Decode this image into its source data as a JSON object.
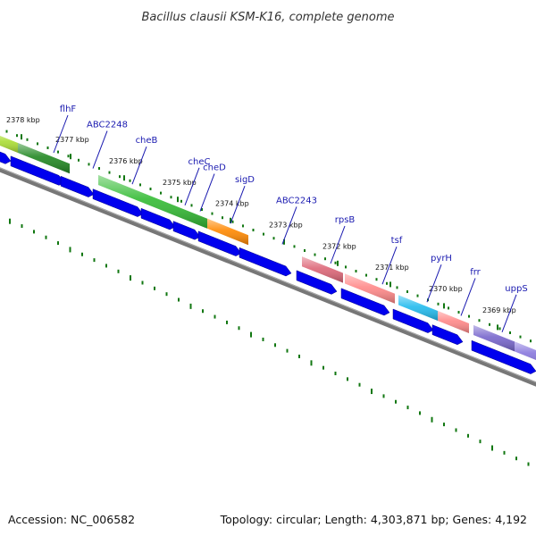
{
  "title": "Bacillus clausii KSM-K16, complete genome",
  "footer": {
    "accession": "Accession: NC_006582",
    "summary": "Topology: circular; Length: 4,303,871 bp; Genes: 4,192"
  },
  "colors": {
    "backbone": "#777777",
    "cds_forward": "#0000ee",
    "dots": "#117711",
    "label": "#1a1ab0"
  },
  "ticks": [
    {
      "label": "2378 kbp",
      "pos": 7
    },
    {
      "label": "2377 kbp",
      "pos": 62
    },
    {
      "label": "2376 kbp",
      "pos": 122
    },
    {
      "label": "2375 kbp",
      "pos": 182
    },
    {
      "label": "2374 kbp",
      "pos": 241
    },
    {
      "label": "2373 kbp",
      "pos": 301
    },
    {
      "label": "2372 kbp",
      "pos": 361
    },
    {
      "label": "2371 kbp",
      "pos": 420
    },
    {
      "label": "2370 kbp",
      "pos": 480
    },
    {
      "label": "2369 kbp",
      "pos": 540
    }
  ],
  "genes": [
    {
      "label": "flhF",
      "pos": 60
    },
    {
      "label": "ABC2248",
      "pos": 104
    },
    {
      "label": "cheB",
      "pos": 148
    },
    {
      "label": "cheC",
      "pos": 207
    },
    {
      "label": "cheD",
      "pos": 224
    },
    {
      "label": "sigD",
      "pos": 258
    },
    {
      "label": "ABC2243",
      "pos": 316
    },
    {
      "label": "rpsB",
      "pos": 370
    },
    {
      "label": "tsf",
      "pos": 428
    },
    {
      "label": "pyrH",
      "pos": 478
    },
    {
      "label": "frr",
      "pos": 516
    },
    {
      "label": "uppS",
      "pos": 562
    }
  ],
  "top_features": [
    {
      "start": -10,
      "end": 20,
      "color": "#aadd33"
    },
    {
      "start": 20,
      "end": 78,
      "color": "#228822"
    },
    {
      "start": 110,
      "end": 232,
      "color": "#33bb33"
    },
    {
      "start": 232,
      "end": 278,
      "color": "#ff8800"
    },
    {
      "start": 338,
      "end": 384,
      "color": "#dd6677"
    },
    {
      "start": 386,
      "end": 442,
      "color": "#ff8888"
    },
    {
      "start": 446,
      "end": 490,
      "color": "#22bbee"
    },
    {
      "start": 490,
      "end": 525,
      "color": "#ff8888"
    },
    {
      "start": 530,
      "end": 576,
      "color": "#7766cc"
    },
    {
      "start": 576,
      "end": 620,
      "color": "#8877dd"
    }
  ],
  "cds_arrows": [
    {
      "start": -10,
      "end": 12
    },
    {
      "start": 12,
      "end": 72
    },
    {
      "start": 68,
      "end": 105
    },
    {
      "start": 104,
      "end": 160
    },
    {
      "start": 158,
      "end": 196
    },
    {
      "start": 194,
      "end": 224
    },
    {
      "start": 222,
      "end": 270
    },
    {
      "start": 268,
      "end": 326
    },
    {
      "start": 332,
      "end": 377
    },
    {
      "start": 382,
      "end": 436
    },
    {
      "start": 440,
      "end": 485
    },
    {
      "start": 484,
      "end": 518
    },
    {
      "start": 528,
      "end": 600
    }
  ]
}
